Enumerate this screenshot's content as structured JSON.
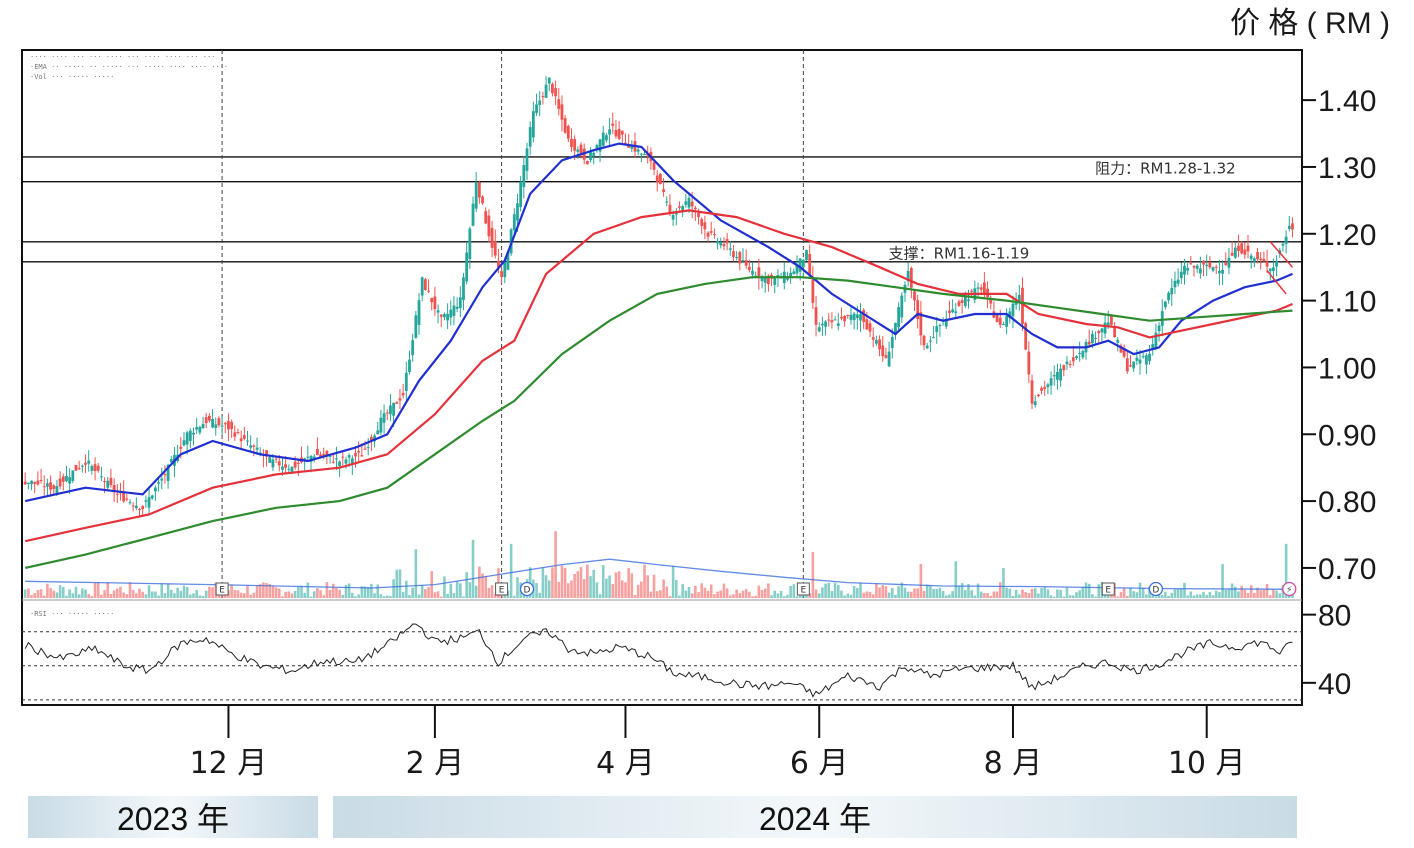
{
  "unit_label": "价 格 ( RM )",
  "years": [
    "2023 年",
    "2024 年"
  ],
  "colors": {
    "up": "#26a69a",
    "down": "#ef5350",
    "ema20": "#1f2fd1",
    "ema60": "#e5323a",
    "ema120": "#2e8b2e",
    "vol_ma": "#3b6fe0",
    "rsi": "#222222"
  },
  "chart_data": {
    "type": "line",
    "title": "",
    "price_axis": {
      "ylim": [
        0.655,
        1.475
      ],
      "ticks": [
        {
          "v": 1.4,
          "label": "1.40"
        },
        {
          "v": 1.3,
          "label": "1.30"
        },
        {
          "v": 1.2,
          "label": "1.20"
        },
        {
          "v": 1.1,
          "label": "1.10"
        },
        {
          "v": 1.0,
          "label": "1.00"
        },
        {
          "v": 0.9,
          "label": "0.90"
        },
        {
          "v": 0.8,
          "label": "0.80"
        },
        {
          "v": 0.7,
          "label": "0.70"
        }
      ]
    },
    "rsi_axis": {
      "ylim": [
        27,
        88
      ],
      "ticks": [
        {
          "v": 80,
          "label": "80"
        },
        {
          "v": 40,
          "label": "40"
        }
      ],
      "guides": [
        70,
        50,
        30
      ]
    },
    "x_ticks": [
      {
        "d": 45,
        "label": "12 月"
      },
      {
        "d": 110,
        "label": "2 月"
      },
      {
        "d": 170,
        "label": "4 月"
      },
      {
        "d": 231,
        "label": "6 月"
      },
      {
        "d": 292,
        "label": "8 月"
      },
      {
        "d": 353,
        "label": "10 月"
      }
    ],
    "x_domain": [
      -20,
      383
    ],
    "event_lines": [
      43,
      131,
      226
    ],
    "markers": [
      {
        "d": 43,
        "label": "E"
      },
      {
        "d": 131,
        "label": "E"
      },
      {
        "d": 139,
        "label": "D"
      },
      {
        "d": 226,
        "label": "E"
      },
      {
        "d": 322,
        "label": "E"
      },
      {
        "d": 337,
        "label": "D"
      },
      {
        "d": 379,
        "label": "⚡"
      }
    ],
    "levels": [
      1.315,
      1.278,
      1.188,
      1.158
    ],
    "annotations": [
      {
        "text": "阻力：RM1.28-1.32",
        "d": 340,
        "v": 1.29
      },
      {
        "text": "支撑：RM1.16-1.19",
        "d": 275,
        "v": 1.163
      }
    ],
    "close_path": [
      [
        -19,
        0.83
      ],
      [
        -10,
        0.82
      ],
      [
        0,
        0.86
      ],
      [
        10,
        0.81
      ],
      [
        18,
        0.79
      ],
      [
        25,
        0.84
      ],
      [
        32,
        0.9
      ],
      [
        38,
        0.92
      ],
      [
        45,
        0.91
      ],
      [
        50,
        0.89
      ],
      [
        58,
        0.86
      ],
      [
        65,
        0.85
      ],
      [
        72,
        0.87
      ],
      [
        80,
        0.86
      ],
      [
        87,
        0.87
      ],
      [
        93,
        0.92
      ],
      [
        100,
        0.96
      ],
      [
        106,
        1.13
      ],
      [
        112,
        1.07
      ],
      [
        118,
        1.1
      ],
      [
        123,
        1.28
      ],
      [
        127,
        1.2
      ],
      [
        131,
        1.13
      ],
      [
        136,
        1.25
      ],
      [
        141,
        1.38
      ],
      [
        146,
        1.43
      ],
      [
        152,
        1.34
      ],
      [
        158,
        1.31
      ],
      [
        165,
        1.36
      ],
      [
        172,
        1.33
      ],
      [
        178,
        1.31
      ],
      [
        184,
        1.23
      ],
      [
        190,
        1.25
      ],
      [
        196,
        1.2
      ],
      [
        202,
        1.18
      ],
      [
        208,
        1.15
      ],
      [
        215,
        1.13
      ],
      [
        222,
        1.14
      ],
      [
        227,
        1.17
      ],
      [
        230,
        1.06
      ],
      [
        237,
        1.07
      ],
      [
        244,
        1.08
      ],
      [
        252,
        1.01
      ],
      [
        259,
        1.14
      ],
      [
        264,
        1.03
      ],
      [
        270,
        1.07
      ],
      [
        276,
        1.1
      ],
      [
        282,
        1.12
      ],
      [
        288,
        1.06
      ],
      [
        294,
        1.11
      ],
      [
        298,
        0.95
      ],
      [
        304,
        0.98
      ],
      [
        310,
        1.01
      ],
      [
        316,
        1.04
      ],
      [
        322,
        1.07
      ],
      [
        328,
        1.0
      ],
      [
        335,
        1.02
      ],
      [
        340,
        1.1
      ],
      [
        346,
        1.15
      ],
      [
        352,
        1.15
      ],
      [
        358,
        1.15
      ],
      [
        363,
        1.18
      ],
      [
        369,
        1.16
      ],
      [
        374,
        1.15
      ],
      [
        379,
        1.21
      ]
    ],
    "series": [
      {
        "name": "EMA 20",
        "points": [
          [
            -19,
            0.8
          ],
          [
            0,
            0.82
          ],
          [
            18,
            0.81
          ],
          [
            30,
            0.87
          ],
          [
            40,
            0.89
          ],
          [
            55,
            0.87
          ],
          [
            70,
            0.86
          ],
          [
            85,
            0.88
          ],
          [
            95,
            0.9
          ],
          [
            105,
            0.98
          ],
          [
            115,
            1.04
          ],
          [
            125,
            1.12
          ],
          [
            132,
            1.16
          ],
          [
            140,
            1.26
          ],
          [
            150,
            1.31
          ],
          [
            160,
            1.325
          ],
          [
            168,
            1.335
          ],
          [
            175,
            1.33
          ],
          [
            185,
            1.28
          ],
          [
            200,
            1.22
          ],
          [
            215,
            1.18
          ],
          [
            225,
            1.15
          ],
          [
            235,
            1.11
          ],
          [
            245,
            1.08
          ],
          [
            255,
            1.05
          ],
          [
            262,
            1.08
          ],
          [
            270,
            1.07
          ],
          [
            280,
            1.08
          ],
          [
            290,
            1.08
          ],
          [
            298,
            1.05
          ],
          [
            306,
            1.03
          ],
          [
            315,
            1.03
          ],
          [
            322,
            1.04
          ],
          [
            330,
            1.02
          ],
          [
            338,
            1.03
          ],
          [
            345,
            1.07
          ],
          [
            355,
            1.1
          ],
          [
            365,
            1.12
          ],
          [
            375,
            1.13
          ],
          [
            380,
            1.14
          ]
        ]
      },
      {
        "name": "EMA 60",
        "points": [
          [
            -19,
            0.74
          ],
          [
            0,
            0.76
          ],
          [
            20,
            0.78
          ],
          [
            40,
            0.82
          ],
          [
            60,
            0.84
          ],
          [
            80,
            0.85
          ],
          [
            95,
            0.87
          ],
          [
            110,
            0.93
          ],
          [
            125,
            1.01
          ],
          [
            135,
            1.04
          ],
          [
            145,
            1.14
          ],
          [
            160,
            1.2
          ],
          [
            175,
            1.225
          ],
          [
            190,
            1.235
          ],
          [
            205,
            1.225
          ],
          [
            220,
            1.2
          ],
          [
            235,
            1.18
          ],
          [
            250,
            1.15
          ],
          [
            262,
            1.125
          ],
          [
            275,
            1.11
          ],
          [
            290,
            1.11
          ],
          [
            300,
            1.08
          ],
          [
            315,
            1.065
          ],
          [
            325,
            1.06
          ],
          [
            335,
            1.045
          ],
          [
            345,
            1.055
          ],
          [
            355,
            1.065
          ],
          [
            365,
            1.075
          ],
          [
            375,
            1.085
          ],
          [
            380,
            1.095
          ]
        ]
      },
      {
        "name": "EMA 120",
        "points": [
          [
            -19,
            0.7
          ],
          [
            0,
            0.72
          ],
          [
            20,
            0.745
          ],
          [
            40,
            0.77
          ],
          [
            60,
            0.79
          ],
          [
            80,
            0.8
          ],
          [
            95,
            0.82
          ],
          [
            110,
            0.87
          ],
          [
            125,
            0.92
          ],
          [
            135,
            0.95
          ],
          [
            150,
            1.02
          ],
          [
            165,
            1.07
          ],
          [
            180,
            1.11
          ],
          [
            195,
            1.125
          ],
          [
            210,
            1.135
          ],
          [
            225,
            1.135
          ],
          [
            240,
            1.13
          ],
          [
            255,
            1.12
          ],
          [
            270,
            1.11
          ],
          [
            290,
            1.1
          ],
          [
            305,
            1.09
          ],
          [
            320,
            1.08
          ],
          [
            335,
            1.07
          ],
          [
            350,
            1.075
          ],
          [
            365,
            1.08
          ],
          [
            380,
            1.085
          ]
        ]
      }
    ],
    "volume_ma": [
      [
        -19,
        0.68
      ],
      [
        40,
        0.675
      ],
      [
        90,
        0.67
      ],
      [
        110,
        0.675
      ],
      [
        130,
        0.69
      ],
      [
        150,
        0.705
      ],
      [
        165,
        0.713
      ],
      [
        180,
        0.705
      ],
      [
        200,
        0.695
      ],
      [
        220,
        0.686
      ],
      [
        240,
        0.678
      ],
      [
        270,
        0.673
      ],
      [
        300,
        0.672
      ],
      [
        340,
        0.669
      ],
      [
        380,
        0.668
      ]
    ],
    "volume_spikes": [
      [
        104,
        0.728
      ],
      [
        122,
        0.742
      ],
      [
        134,
        0.736
      ],
      [
        148,
        0.755
      ],
      [
        229,
        0.724
      ],
      [
        263,
        0.706
      ],
      [
        274,
        0.71
      ],
      [
        289,
        0.7
      ],
      [
        358,
        0.706
      ],
      [
        378,
        0.736
      ]
    ],
    "rsi": [
      [
        -19,
        62
      ],
      [
        -8,
        54
      ],
      [
        3,
        60
      ],
      [
        12,
        50
      ],
      [
        20,
        47
      ],
      [
        30,
        63
      ],
      [
        38,
        66
      ],
      [
        45,
        58
      ],
      [
        55,
        50
      ],
      [
        65,
        47
      ],
      [
        75,
        53
      ],
      [
        85,
        52
      ],
      [
        95,
        62
      ],
      [
        104,
        75
      ],
      [
        110,
        64
      ],
      [
        118,
        66
      ],
      [
        124,
        70
      ],
      [
        130,
        52
      ],
      [
        138,
        66
      ],
      [
        146,
        70
      ],
      [
        152,
        60
      ],
      [
        160,
        57
      ],
      [
        168,
        61
      ],
      [
        178,
        55
      ],
      [
        186,
        45
      ],
      [
        196,
        43
      ],
      [
        206,
        39
      ],
      [
        215,
        38
      ],
      [
        222,
        40
      ],
      [
        230,
        33
      ],
      [
        240,
        44
      ],
      [
        250,
        38
      ],
      [
        258,
        50
      ],
      [
        266,
        44
      ],
      [
        275,
        48
      ],
      [
        284,
        49
      ],
      [
        292,
        50
      ],
      [
        298,
        37
      ],
      [
        306,
        43
      ],
      [
        315,
        50
      ],
      [
        322,
        52
      ],
      [
        330,
        47
      ],
      [
        338,
        51
      ],
      [
        346,
        58
      ],
      [
        354,
        63
      ],
      [
        362,
        61
      ],
      [
        370,
        64
      ],
      [
        376,
        58
      ],
      [
        380,
        63
      ]
    ]
  }
}
